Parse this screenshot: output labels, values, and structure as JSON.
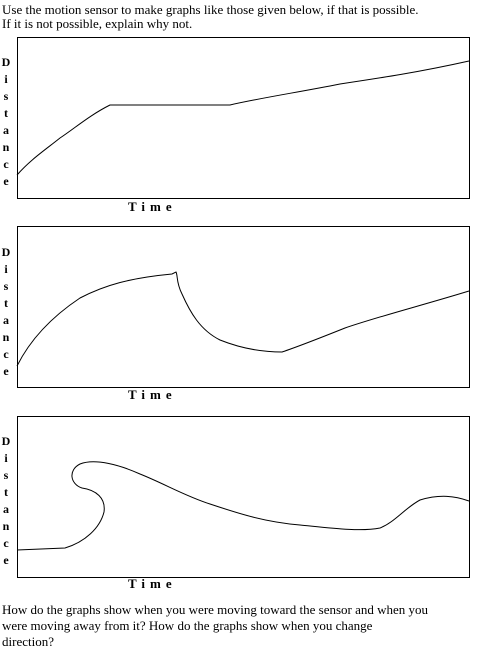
{
  "intro": {
    "lines": [
      "Use the motion sensor to make graphs like those given below, if that is possible.",
      "If it is not possible, explain why not."
    ]
  },
  "graphs": [
    {
      "y_label": "Distance",
      "x_label": "Time"
    },
    {
      "y_label": "Distance",
      "x_label": "Time"
    },
    {
      "y_label": "Distance",
      "x_label": "Time"
    }
  ],
  "question": {
    "lines": [
      "How do the graphs show when you were moving toward the sensor and when you",
      "were moving away from it?  How do the graphs show when you change",
      "direction?"
    ]
  }
}
